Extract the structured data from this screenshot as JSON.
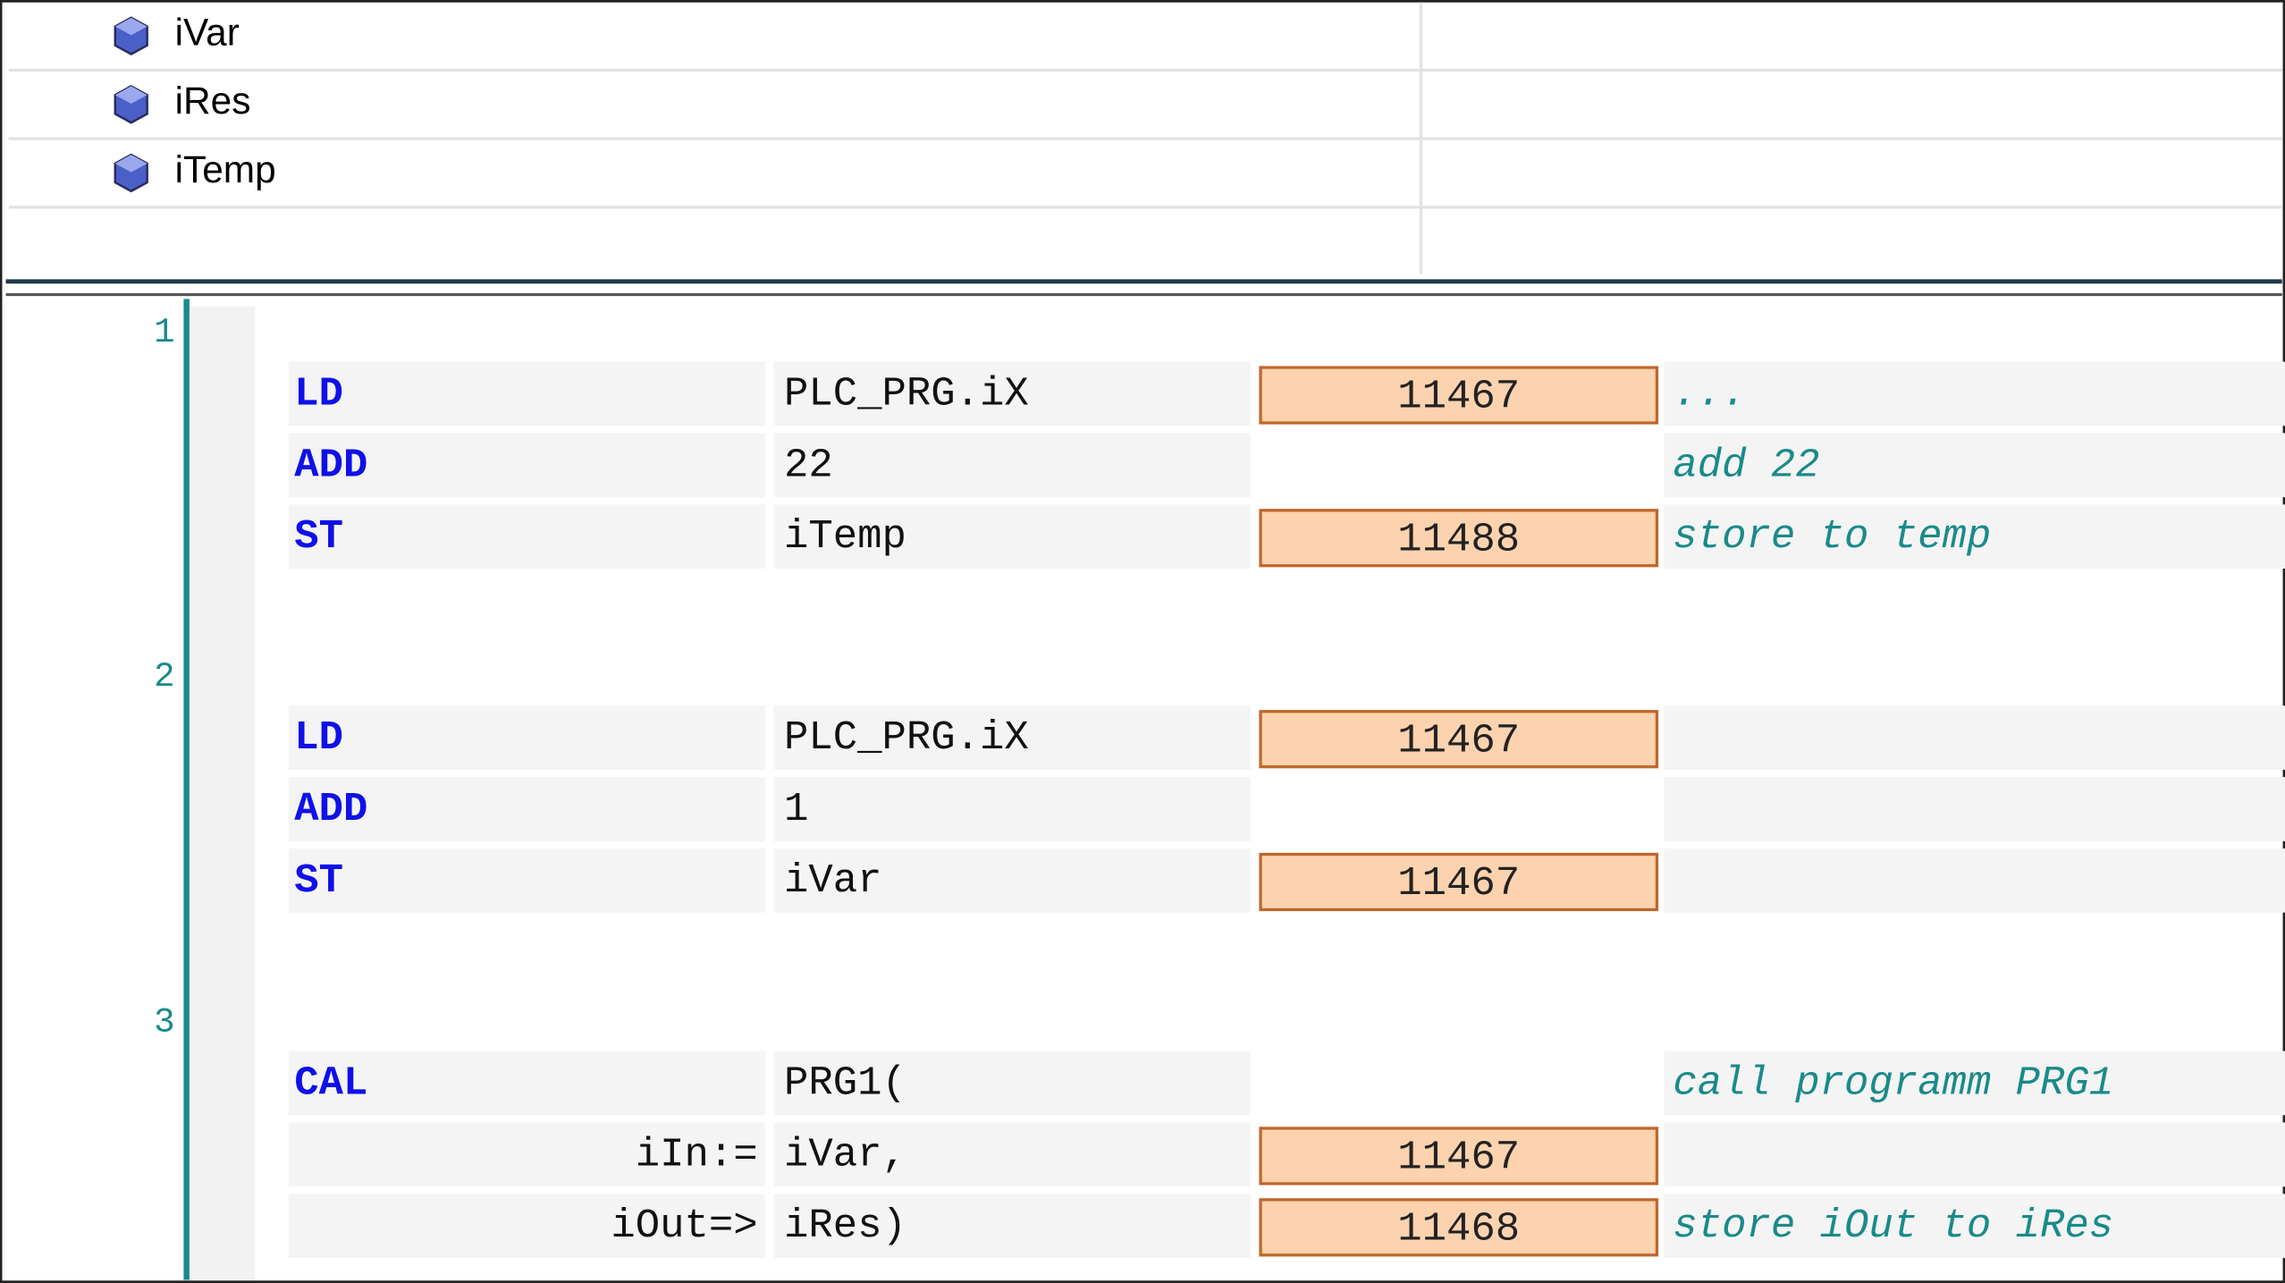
{
  "variables": [
    "iVar",
    "iRes",
    "iTemp"
  ],
  "networks": [
    {
      "number": "1",
      "rows": [
        {
          "operator": "LD",
          "operand": "PLC_PRG.iX",
          "value": 11467,
          "comment": "..."
        },
        {
          "operator": "ADD",
          "operand": "22",
          "comment": "add 22"
        },
        {
          "operator": "ST",
          "operand": "iTemp",
          "value": 11488,
          "comment": "store to temp"
        }
      ]
    },
    {
      "number": "2",
      "rows": [
        {
          "operator": "LD",
          "operand": "PLC_PRG.iX",
          "value": 11467
        },
        {
          "operator": "ADD",
          "operand": "1"
        },
        {
          "operator": "ST",
          "operand": "iVar",
          "value": 11467
        }
      ]
    },
    {
      "number": "3",
      "rows": [
        {
          "operator": "CAL",
          "operand": "PRG1(",
          "comment": "call programm PRG1"
        },
        {
          "operator": "iIn:=",
          "operand": "iVar,",
          "value": 11467
        },
        {
          "operator": "iOut=>",
          "operand": "iRes)",
          "value": 11468,
          "comment": "store iOut to iRes"
        }
      ]
    }
  ]
}
